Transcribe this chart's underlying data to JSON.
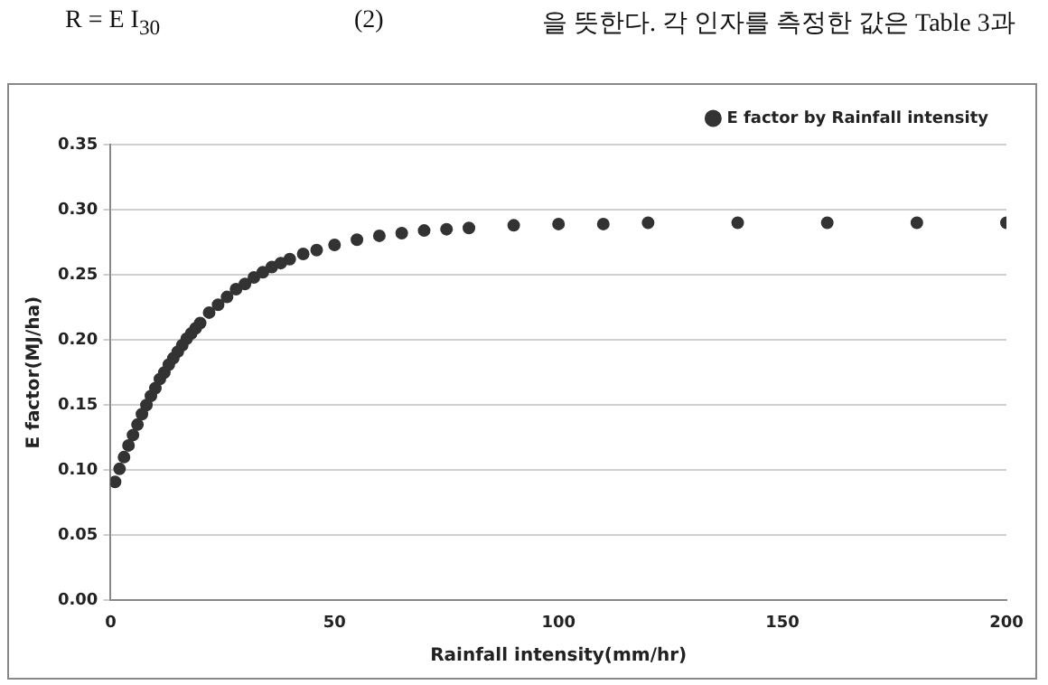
{
  "chart_data": {
    "type": "scatter",
    "xlabel": "Rainfall intensity(mm/hr)",
    "ylabel": "E factor(MJ/ha)",
    "annotations": [
      "R = E I$_{30}$",
      "(2)",
      "을 뜻한다. 각 인자를 측정한 값은 Table 3과"
    ],
    "series": [
      {
        "name": "E factor by Rainfall intensity",
        "color": "#333333",
        "x": [
          1,
          2,
          3,
          4,
          5,
          6,
          7,
          8,
          9,
          10,
          11,
          12,
          13,
          14,
          15,
          16,
          17,
          18,
          19,
          20,
          22,
          24,
          26,
          28,
          30,
          32,
          34,
          36,
          38,
          40,
          43,
          46,
          50,
          55,
          60,
          65,
          70,
          75,
          80,
          90,
          100,
          110,
          120,
          140,
          160,
          180,
          200
        ],
        "values": [
          0.091,
          0.101,
          0.11,
          0.119,
          0.127,
          0.135,
          0.143,
          0.15,
          0.157,
          0.163,
          0.17,
          0.175,
          0.181,
          0.186,
          0.191,
          0.196,
          0.201,
          0.205,
          0.209,
          0.213,
          0.221,
          0.227,
          0.233,
          0.239,
          0.243,
          0.248,
          0.252,
          0.256,
          0.259,
          0.262,
          0.266,
          0.269,
          0.273,
          0.277,
          0.28,
          0.282,
          0.284,
          0.285,
          0.286,
          0.288,
          0.289,
          0.289,
          0.29,
          0.29,
          0.29,
          0.29,
          0.29
        ]
      }
    ],
    "xlim": [
      0,
      200
    ],
    "xticks": [
      0,
      50,
      100,
      150,
      200
    ],
    "ylim": [
      0,
      0.35
    ],
    "yticks": [
      {
        "value": 0,
        "label": "0.00"
      },
      {
        "value": 0.05,
        "label": "0.05"
      },
      {
        "value": 0.1,
        "label": "0.10"
      },
      {
        "value": 0.15,
        "label": "0.15"
      },
      {
        "value": 0.2,
        "label": "0.20"
      },
      {
        "value": 0.25,
        "label": "0.25"
      },
      {
        "value": 0.3,
        "label": "0.30"
      },
      {
        "value": 0.35,
        "label": "0.35"
      }
    ],
    "grid": "y",
    "legend": "top right",
    "marker": "circle"
  }
}
